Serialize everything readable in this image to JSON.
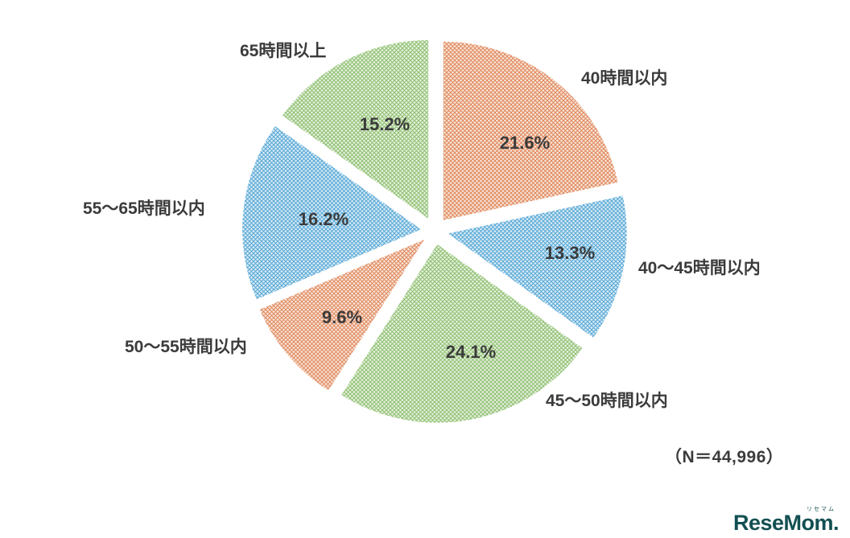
{
  "chart_data": {
    "type": "pie",
    "style": "exploded, crosshatch-pattern fill",
    "direction": "clockwise",
    "start_angle_deg_from_top": 0,
    "n_label": "（N＝44,996）",
    "slices": [
      {
        "label": "40時間以内",
        "value": 21.6,
        "display": "21.6%",
        "color": "#E0875A"
      },
      {
        "label": "40〜45時間以内",
        "value": 13.3,
        "display": "13.3%",
        "color": "#55A7D6"
      },
      {
        "label": "45〜50時間以内",
        "value": 24.1,
        "display": "24.1%",
        "color": "#8DBF6E"
      },
      {
        "label": "50〜55時間以内",
        "value": 9.6,
        "display": "9.6%",
        "color": "#E0875A"
      },
      {
        "label": "55〜65時間以内",
        "value": 16.2,
        "display": "16.2%",
        "color": "#55A7D6"
      },
      {
        "label": "65時間以上",
        "value": 15.2,
        "display": "15.2%",
        "color": "#8DBF6E"
      }
    ],
    "text_color": "#3B3B3B"
  },
  "logo": {
    "kana": "リセマム",
    "text": "ReseMom.",
    "color": "#134F52"
  }
}
